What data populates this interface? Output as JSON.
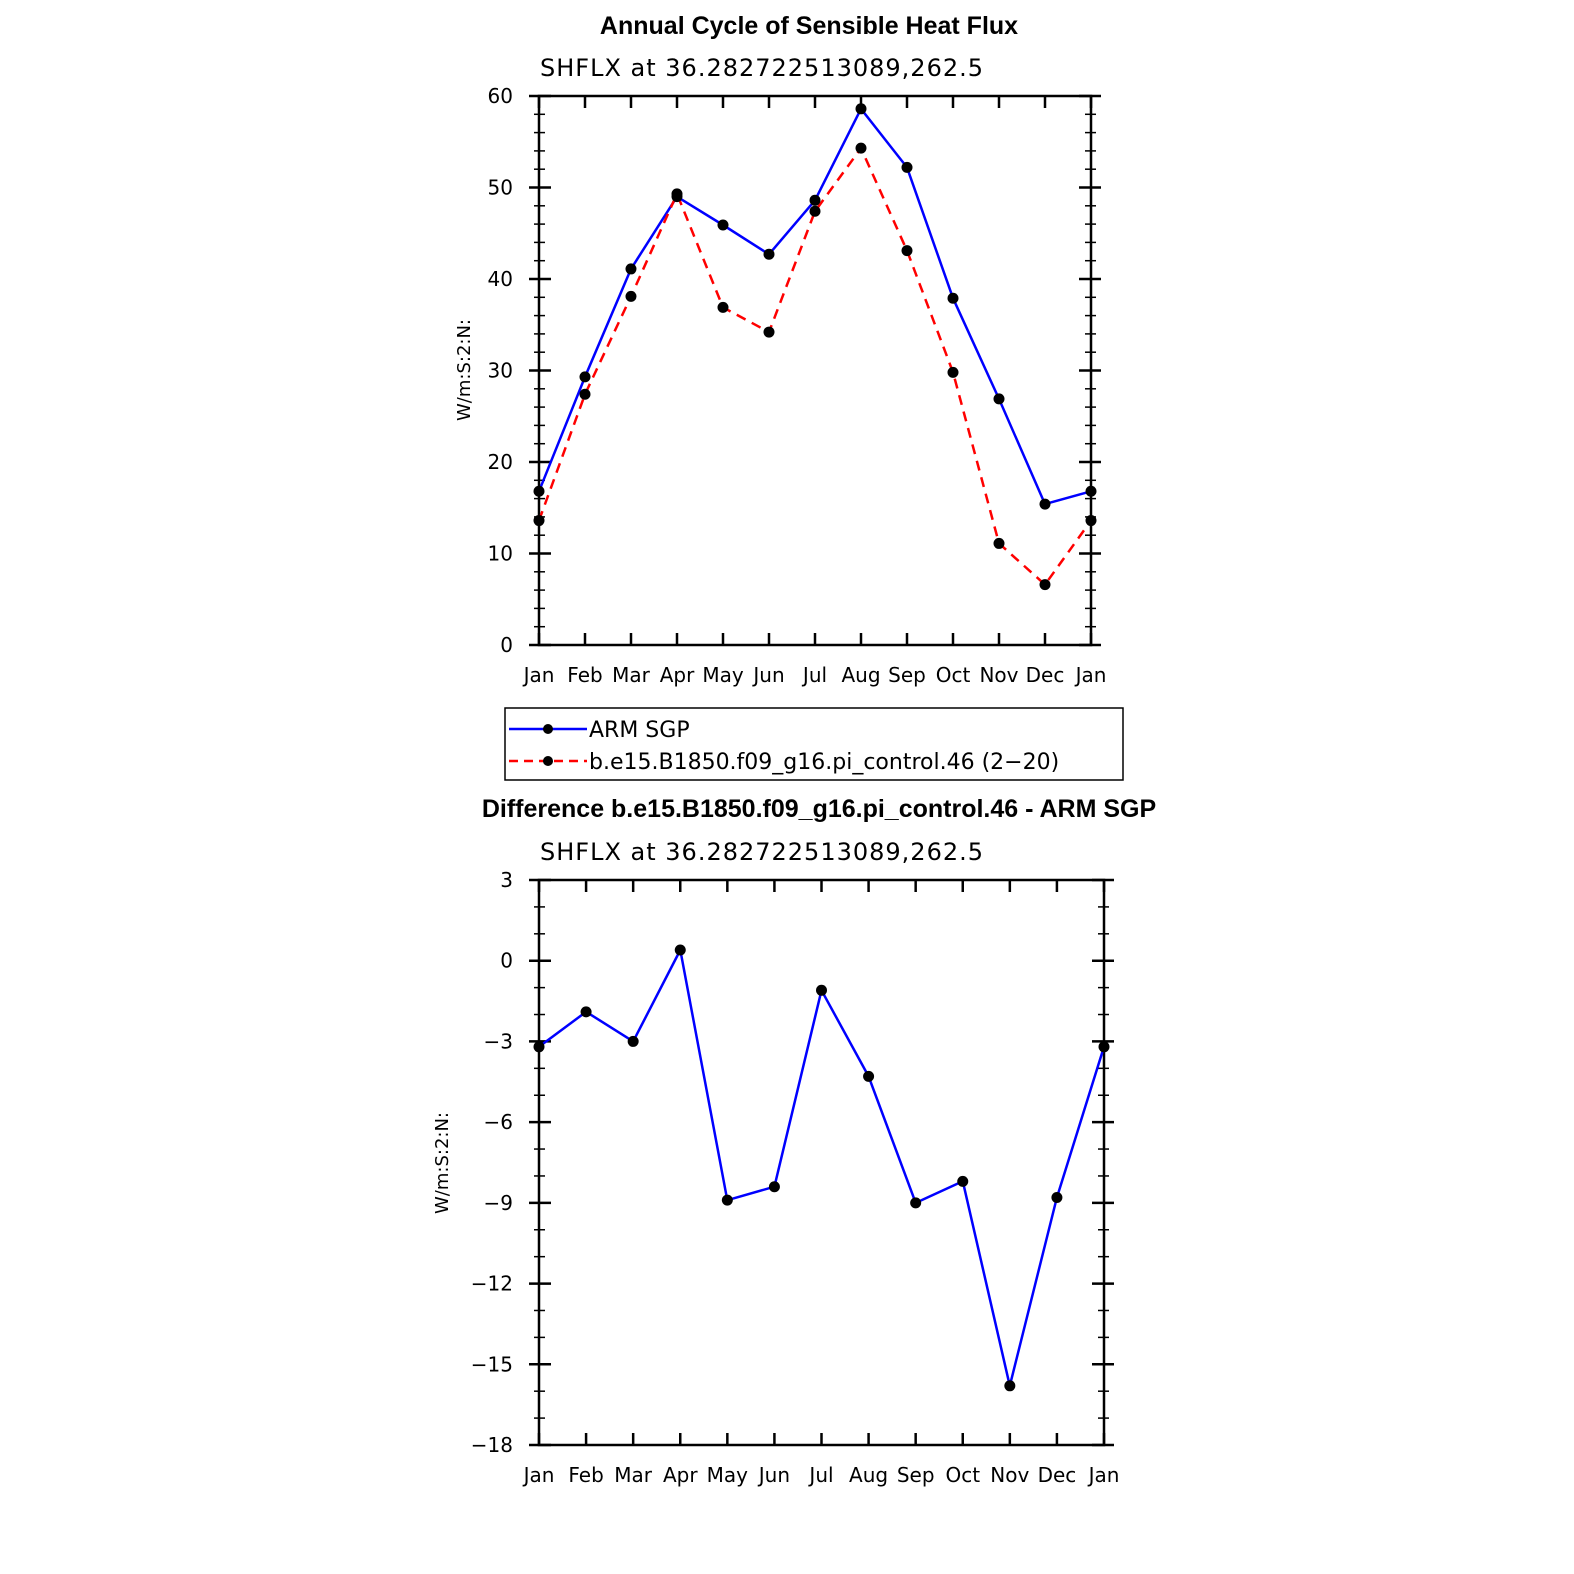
{
  "chart_data": [
    {
      "type": "line",
      "title": "Annual Cycle of Sensible Heat Flux",
      "subtitle": "SHFLX  at  36.282722513089,262.5",
      "xlabel": "",
      "ylabel": "W/m:S:2:N:",
      "categories": [
        "Jan",
        "Feb",
        "Mar",
        "Apr",
        "May",
        "Jun",
        "Jul",
        "Aug",
        "Sep",
        "Oct",
        "Nov",
        "Dec",
        "Jan"
      ],
      "ylim": [
        0,
        60
      ],
      "yticks": [
        0,
        10,
        20,
        30,
        40,
        50,
        60
      ],
      "ytick_labels": [
        "0",
        "10",
        "20",
        "30",
        "40",
        "50",
        "60"
      ],
      "series": [
        {
          "name": "ARM SGP",
          "color": "#0000ff",
          "dash": "solid",
          "values": [
            16.8,
            29.3,
            41.1,
            49.0,
            45.9,
            42.7,
            48.6,
            58.6,
            52.2,
            37.9,
            26.9,
            15.4,
            16.8
          ]
        },
        {
          "name": "b.e15.B1850.f09_g16.pi_control.46 (2−20)",
          "color": "#ff0000",
          "dash": "dashed",
          "values": [
            13.6,
            27.4,
            38.1,
            49.3,
            36.9,
            34.2,
            47.4,
            54.3,
            43.1,
            29.8,
            11.1,
            6.6,
            13.6
          ]
        }
      ],
      "legend": {
        "position": "bottom"
      }
    },
    {
      "type": "line",
      "title": "Difference b.e15.B1850.f09_g16.pi_control.46 - ARM SGP",
      "subtitle": "SHFLX  at  36.282722513089,262.5",
      "xlabel": "",
      "ylabel": "W/m:S:2:N:",
      "categories": [
        "Jan",
        "Feb",
        "Mar",
        "Apr",
        "May",
        "Jun",
        "Jul",
        "Aug",
        "Sep",
        "Oct",
        "Nov",
        "Dec",
        "Jan"
      ],
      "ylim": [
        -18,
        3
      ],
      "yticks": [
        -18,
        -15,
        -12,
        -9,
        -6,
        -3,
        0,
        3
      ],
      "ytick_labels": [
        "−18",
        "−15",
        "−12",
        "−9",
        "−6",
        "−3",
        "0",
        "3"
      ],
      "series": [
        {
          "name": "Difference",
          "color": "#0000ff",
          "dash": "solid",
          "values": [
            -3.2,
            -1.9,
            -3.0,
            0.4,
            -8.9,
            -8.4,
            -1.1,
            -4.3,
            -9.0,
            -8.2,
            -15.8,
            -8.8,
            -3.2
          ]
        }
      ]
    }
  ]
}
